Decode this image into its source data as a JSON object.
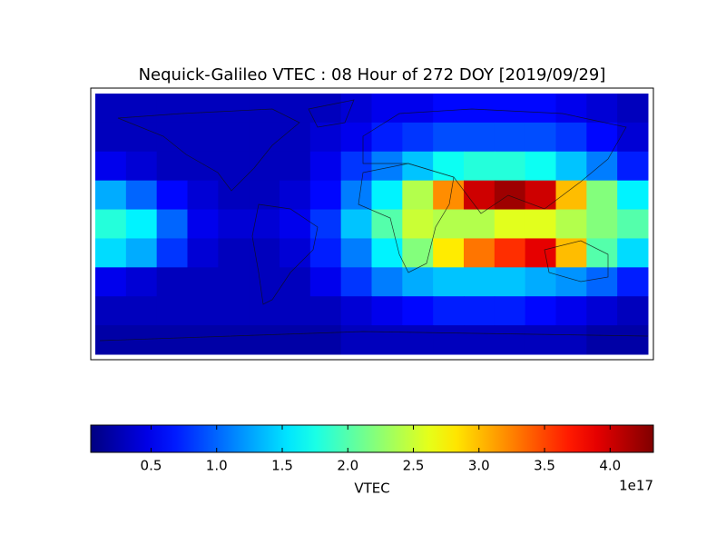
{
  "chart_data": {
    "type": "heatmap",
    "title": "Nequick-Galileo VTEC : 08 Hour of 272 DOY [2019/09/29]",
    "colormap": "jet",
    "values": [
      [
        0.3,
        0.3,
        0.3,
        0.3,
        0.3,
        0.3,
        0.3,
        0.3,
        0.4,
        0.5,
        0.5,
        0.6,
        0.6,
        0.6,
        0.6,
        0.5,
        0.4,
        0.3
      ],
      [
        0.3,
        0.3,
        0.3,
        0.3,
        0.3,
        0.3,
        0.3,
        0.4,
        0.5,
        0.7,
        0.8,
        0.9,
        0.9,
        0.9,
        0.9,
        0.8,
        0.6,
        0.4
      ],
      [
        0.5,
        0.4,
        0.3,
        0.3,
        0.3,
        0.3,
        0.3,
        0.5,
        0.8,
        1.1,
        1.4,
        1.7,
        1.8,
        1.8,
        1.7,
        1.4,
        1.1,
        0.7
      ],
      [
        1.3,
        1.0,
        0.6,
        0.4,
        0.3,
        0.3,
        0.4,
        0.6,
        1.1,
        1.6,
        2.4,
        3.2,
        4.0,
        4.2,
        4.0,
        3.0,
        2.2,
        1.6
      ],
      [
        1.8,
        1.6,
        1.0,
        0.5,
        0.4,
        0.4,
        0.5,
        0.8,
        1.4,
        2.0,
        2.5,
        2.4,
        2.4,
        2.6,
        2.6,
        2.4,
        2.2,
        2.0
      ],
      [
        1.5,
        1.3,
        0.8,
        0.4,
        0.3,
        0.3,
        0.4,
        0.7,
        1.1,
        1.6,
        2.2,
        2.8,
        3.3,
        3.6,
        3.9,
        3.0,
        2.0,
        1.5
      ],
      [
        0.5,
        0.4,
        0.3,
        0.3,
        0.3,
        0.3,
        0.3,
        0.5,
        0.8,
        1.1,
        1.3,
        1.4,
        1.4,
        1.4,
        1.3,
        1.2,
        1.0,
        0.7
      ],
      [
        0.3,
        0.3,
        0.3,
        0.3,
        0.3,
        0.3,
        0.3,
        0.3,
        0.4,
        0.5,
        0.6,
        0.7,
        0.7,
        0.7,
        0.6,
        0.5,
        0.4,
        0.3
      ],
      [
        0.2,
        0.2,
        0.2,
        0.2,
        0.2,
        0.2,
        0.2,
        0.2,
        0.3,
        0.3,
        0.3,
        0.3,
        0.3,
        0.3,
        0.3,
        0.3,
        0.2,
        0.2
      ]
    ],
    "clim": [
      0.04,
      4.33
    ],
    "colorbar_ticks": [
      0.5,
      {
        "value": 1,
        "label": "1.0"
      },
      1.5,
      {
        "value": 2,
        "label": "2.0"
      },
      2.5,
      {
        "value": 3,
        "label": "3.0"
      },
      3.5,
      {
        "value": 4,
        "label": "4.0"
      }
    ],
    "colorbar_label": "VTEC",
    "colorbar_offset_label": "1e17"
  }
}
